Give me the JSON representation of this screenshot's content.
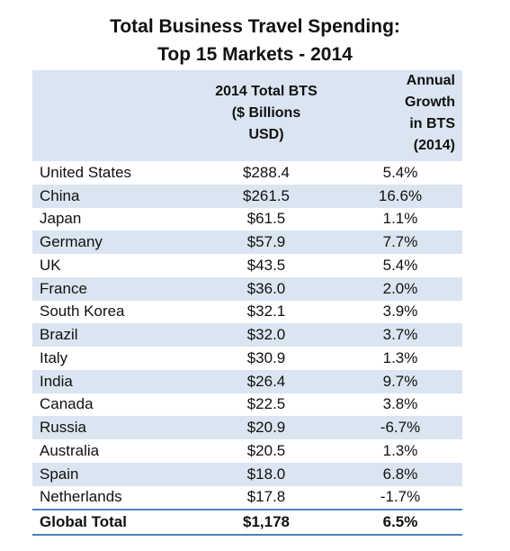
{
  "title_line1": "Total Business Travel Spending:",
  "title_line2": "Top 15 Markets - 2014",
  "columns": {
    "bts": [
      "2014 Total BTS",
      "($ Billions",
      "USD)"
    ],
    "growth": [
      "Annual",
      "Growth",
      "in BTS",
      "(2014)"
    ]
  },
  "rows": [
    {
      "market": "United States",
      "bts": "$288.4",
      "growth": "5.4%"
    },
    {
      "market": "China",
      "bts": "$261.5",
      "growth": "16.6%"
    },
    {
      "market": "Japan",
      "bts": "$61.5",
      "growth": "1.1%"
    },
    {
      "market": "Germany",
      "bts": "$57.9",
      "growth": "7.7%"
    },
    {
      "market": "UK",
      "bts": "$43.5",
      "growth": "5.4%"
    },
    {
      "market": "France",
      "bts": "$36.0",
      "growth": "2.0%"
    },
    {
      "market": "South Korea",
      "bts": "$32.1",
      "growth": "3.9%"
    },
    {
      "market": "Brazil",
      "bts": "$32.0",
      "growth": "3.7%"
    },
    {
      "market": "Italy",
      "bts": "$30.9",
      "growth": "1.3%"
    },
    {
      "market": "India",
      "bts": "$26.4",
      "growth": "9.7%"
    },
    {
      "market": "Canada",
      "bts": "$22.5",
      "growth": "3.8%"
    },
    {
      "market": "Russia",
      "bts": "$20.9",
      "growth": "-6.7%"
    },
    {
      "market": "Australia",
      "bts": "$20.5",
      "growth": "1.3%"
    },
    {
      "market": "Spain",
      "bts": "$18.0",
      "growth": "6.8%"
    },
    {
      "market": "Netherlands",
      "bts": "$17.8",
      "growth": "-1.7%"
    }
  ],
  "total": {
    "market": "Global Total",
    "bts": "$1,178",
    "growth": "6.5%"
  },
  "chart_data": {
    "type": "table",
    "title": "Total Business Travel Spending: Top 15 Markets - 2014",
    "columns": [
      "",
      "2014 Total BTS ($ Billions USD)",
      "Annual Growth in BTS (2014)"
    ],
    "categories": [
      "United States",
      "China",
      "Japan",
      "Germany",
      "UK",
      "France",
      "South Korea",
      "Brazil",
      "Italy",
      "India",
      "Canada",
      "Russia",
      "Australia",
      "Spain",
      "Netherlands"
    ],
    "series": [
      {
        "name": "2014 Total BTS ($ Billions USD)",
        "values": [
          288.4,
          261.5,
          61.5,
          57.9,
          43.5,
          36.0,
          32.1,
          32.0,
          30.9,
          26.4,
          22.5,
          20.9,
          20.5,
          18.0,
          17.8
        ]
      },
      {
        "name": "Annual Growth in BTS (2014)",
        "values": [
          5.4,
          16.6,
          1.1,
          7.7,
          5.4,
          2.0,
          3.9,
          3.7,
          1.3,
          9.7,
          3.8,
          -6.7,
          1.3,
          6.8,
          -1.7
        ]
      }
    ],
    "total": {
      "label": "Global Total",
      "bts": 1178,
      "growth": 6.5
    },
    "colors": {
      "header_shade": "#dbe5f1",
      "border": "#4f81bd"
    }
  }
}
